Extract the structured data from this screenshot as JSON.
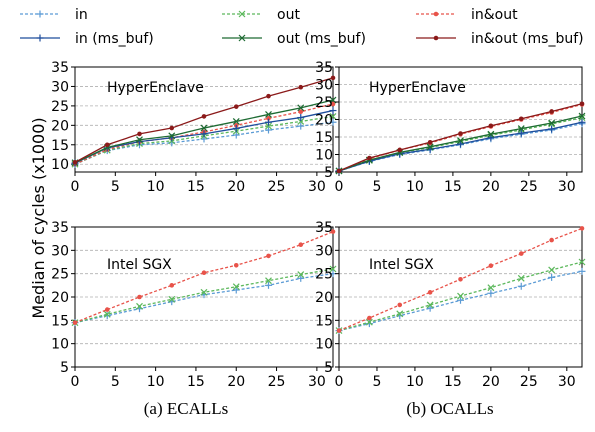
{
  "legend": {
    "items": [
      {
        "label": "in",
        "series": "in"
      },
      {
        "label": "out",
        "series": "out"
      },
      {
        "label": "in&out",
        "series": "inout"
      },
      {
        "label": "in (ms_buf)",
        "series": "in_ms"
      },
      {
        "label": "out (ms_buf)",
        "series": "out_ms"
      },
      {
        "label": "in&out (ms_buf)",
        "series": "inout_ms"
      }
    ]
  },
  "ylabel": "Median of cycles (x1000)",
  "captions": {
    "a": "(a) ECALLs",
    "b": "(b) OCALLs"
  },
  "styles": {
    "in": {
      "color": "#5b9bd5",
      "dash": "3,2",
      "marker": "plus"
    },
    "out": {
      "color": "#5cb85c",
      "dash": "3,2",
      "marker": "x"
    },
    "inout": {
      "color": "#e8534a",
      "dash": "3,2",
      "marker": "dot"
    },
    "in_ms": {
      "color": "#1f4e9c",
      "dash": "",
      "marker": "plus"
    },
    "out_ms": {
      "color": "#1e6b33",
      "dash": "",
      "marker": "x"
    },
    "inout_ms": {
      "color": "#8b1a1a",
      "dash": "",
      "marker": "dot"
    }
  },
  "chart_data": [
    {
      "type": "line",
      "panel": "top-left",
      "annotation": "HyperEnclave",
      "x": [
        0,
        4,
        8,
        12,
        16,
        20,
        24,
        28,
        32
      ],
      "xticks": [
        0,
        5,
        10,
        15,
        20,
        25,
        30
      ],
      "yticks": [
        10,
        15,
        20,
        25,
        30,
        35
      ],
      "xlim": [
        0,
        32
      ],
      "ylim": [
        8,
        35
      ],
      "grid": true,
      "series": [
        {
          "name": "in",
          "key": "in",
          "values": [
            10,
            13.5,
            15,
            15.5,
            16.5,
            17.5,
            18.8,
            19.8,
            20.8
          ]
        },
        {
          "name": "out",
          "key": "out",
          "values": [
            10,
            13.6,
            15.3,
            16,
            17.3,
            18.5,
            19.8,
            21,
            22.3
          ]
        },
        {
          "name": "in&out",
          "key": "inout",
          "values": [
            10,
            13.8,
            15.8,
            16.8,
            18.3,
            20,
            21.8,
            23.5,
            25.5
          ]
        },
        {
          "name": "in (ms_buf)",
          "key": "in_ms",
          "values": [
            10.3,
            14.2,
            15.8,
            16.8,
            17.8,
            19.2,
            20.8,
            22,
            23.8
          ]
        },
        {
          "name": "out (ms_buf)",
          "key": "out_ms",
          "values": [
            10.4,
            14.3,
            16.3,
            17.3,
            19.3,
            21,
            22.8,
            24.5,
            26.5
          ]
        },
        {
          "name": "in&out (ms_buf)",
          "key": "inout_ms",
          "values": [
            10.5,
            15,
            17.8,
            19.3,
            22.3,
            24.8,
            27.5,
            29.8,
            32.2
          ]
        }
      ]
    },
    {
      "type": "line",
      "panel": "top-right",
      "annotation": "HyperEnclave",
      "x": [
        0,
        4,
        8,
        12,
        16,
        20,
        24,
        28,
        32
      ],
      "xticks": [
        0,
        5,
        10,
        15,
        20,
        25,
        30
      ],
      "yticks": [
        5,
        10,
        15,
        20,
        25,
        30,
        35
      ],
      "xlim": [
        0,
        32
      ],
      "ylim": [
        5,
        35
      ],
      "grid": true,
      "series": [
        {
          "name": "in",
          "key": "in",
          "values": [
            5.3,
            8,
            10,
            11.3,
            12.8,
            14.5,
            15.8,
            17,
            18.8
          ]
        },
        {
          "name": "out",
          "key": "out",
          "values": [
            5.3,
            8.3,
            10.5,
            12,
            13.7,
            15.5,
            17,
            18.7,
            20.5
          ]
        },
        {
          "name": "in&out",
          "key": "inout",
          "values": [
            5.3,
            8.8,
            11.3,
            13.3,
            15.8,
            18,
            20,
            22,
            24.3
          ]
        },
        {
          "name": "in (ms_buf)",
          "key": "in_ms",
          "values": [
            5.3,
            8.1,
            10.2,
            11.5,
            13,
            14.8,
            16.1,
            17.3,
            19.2
          ]
        },
        {
          "name": "out (ms_buf)",
          "key": "out_ms",
          "values": [
            5.3,
            8.4,
            10.6,
            12.2,
            14,
            15.8,
            17.4,
            19,
            21
          ]
        },
        {
          "name": "in&out (ms_buf)",
          "key": "inout_ms",
          "values": [
            5.3,
            9,
            11.3,
            13.5,
            16,
            18.2,
            20.2,
            22.3,
            24.5
          ]
        }
      ]
    },
    {
      "type": "line",
      "panel": "bottom-left",
      "annotation": "Intel SGX",
      "x": [
        0,
        4,
        8,
        12,
        16,
        20,
        24,
        28,
        32
      ],
      "xticks": [
        0,
        5,
        10,
        15,
        20,
        25,
        30
      ],
      "yticks": [
        5,
        10,
        15,
        20,
        25,
        30,
        35
      ],
      "xlim": [
        0,
        32
      ],
      "ylim": [
        5,
        35
      ],
      "grid": true,
      "series": [
        {
          "name": "in",
          "key": "in",
          "values": [
            14.5,
            16,
            17.5,
            19,
            20.5,
            21.5,
            22.5,
            24,
            25
          ]
        },
        {
          "name": "out",
          "key": "out",
          "values": [
            14.5,
            16.3,
            18,
            19.5,
            21,
            22.2,
            23.5,
            24.8,
            26
          ]
        },
        {
          "name": "in&out",
          "key": "inout",
          "values": [
            14.5,
            17.3,
            20,
            22.5,
            25.2,
            26.8,
            28.8,
            31.2,
            34
          ]
        }
      ]
    },
    {
      "type": "line",
      "panel": "bottom-right",
      "annotation": "Intel SGX",
      "x": [
        0,
        4,
        8,
        12,
        16,
        20,
        24,
        28,
        32
      ],
      "xticks": [
        0,
        5,
        10,
        15,
        20,
        25,
        30
      ],
      "yticks": [
        5,
        10,
        15,
        20,
        25,
        30,
        35
      ],
      "xlim": [
        0,
        32
      ],
      "ylim": [
        5,
        35
      ],
      "grid": true,
      "series": [
        {
          "name": "in",
          "key": "in",
          "values": [
            12.8,
            14.3,
            16,
            17.6,
            19.3,
            20.8,
            22.3,
            24.2,
            25.5
          ]
        },
        {
          "name": "out",
          "key": "out",
          "values": [
            12.8,
            14.6,
            16.4,
            18.3,
            20.2,
            22,
            24,
            25.8,
            27.5
          ]
        },
        {
          "name": "in&out",
          "key": "inout",
          "values": [
            12.8,
            15.5,
            18.3,
            21,
            23.8,
            26.7,
            29.3,
            32.2,
            34.7
          ]
        }
      ]
    }
  ]
}
